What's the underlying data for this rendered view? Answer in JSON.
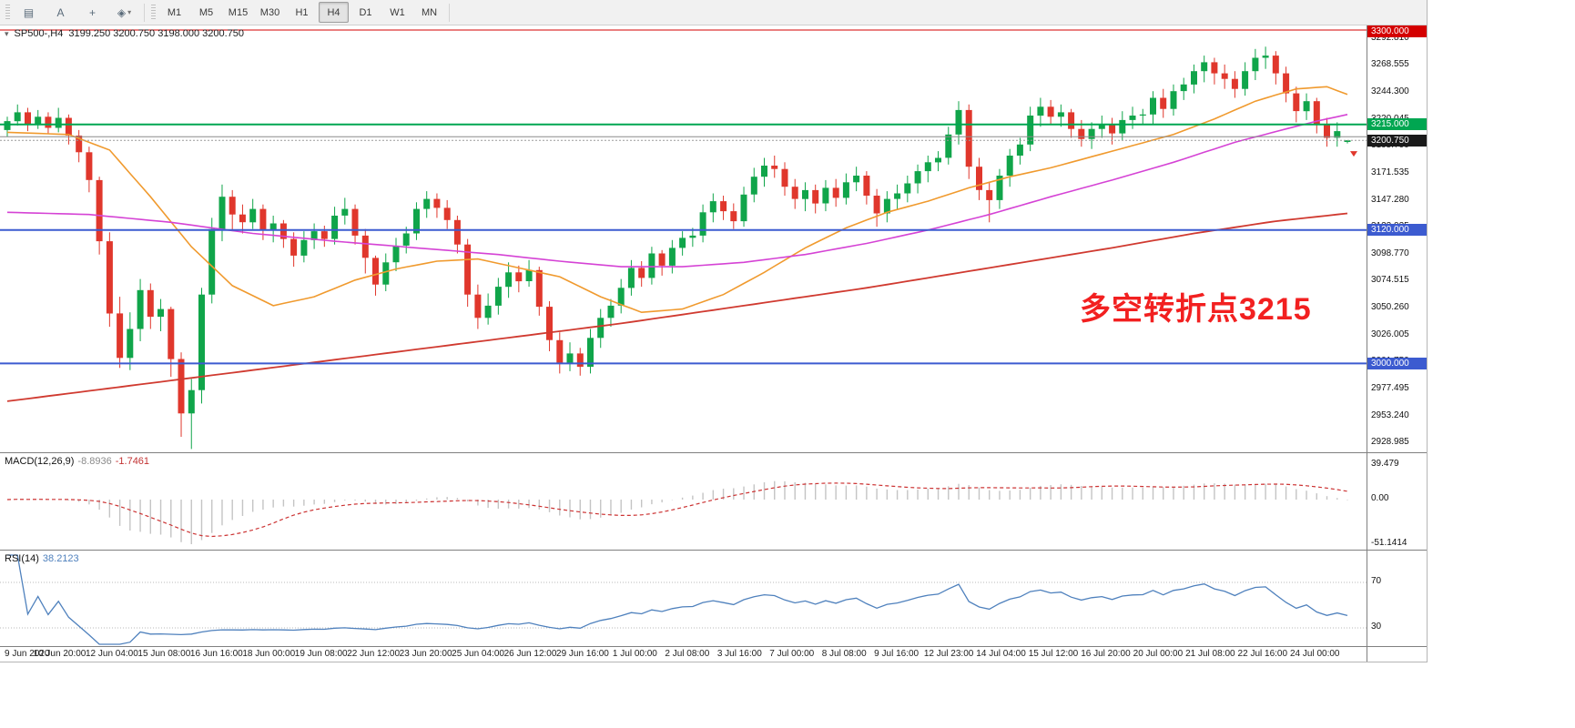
{
  "toolbar": {
    "tools": [
      {
        "name": "charts-grid",
        "glyph": "▤"
      },
      {
        "name": "text-label",
        "glyph": "A"
      },
      {
        "name": "crosshair",
        "glyph": "+"
      },
      {
        "name": "objects-list",
        "glyph": "◈",
        "caret": "▾"
      }
    ],
    "timeframes": [
      "M1",
      "M5",
      "M15",
      "M30",
      "H1",
      "H4",
      "D1",
      "W1",
      "MN"
    ],
    "active_timeframe": "H4"
  },
  "chart": {
    "title": "SP500-,H4",
    "ohlc_text": "3199.250 3200.750 3198.000 3200.750",
    "one_click_glyph": "▾",
    "annotation": {
      "text": "多空转折点3215",
      "color": "#f22020"
    },
    "price_axis": {
      "ticks": [
        "3292.810",
        "3268.555",
        "3244.300",
        "3220.045",
        "3195.790",
        "3171.535",
        "3147.280",
        "3123.025",
        "3098.770",
        "3074.515",
        "3050.260",
        "3026.005",
        "3001.750",
        "2977.495",
        "2953.240",
        "2928.985"
      ],
      "badges": [
        {
          "label": "3300.000",
          "price": 3300,
          "bg": "#d40000"
        },
        {
          "label": "3215.000",
          "price": 3215,
          "bg": "#00a651"
        },
        {
          "label": "3200.750",
          "price": 3200.75,
          "bg": "#1a1a1a"
        },
        {
          "label": "3120.000",
          "price": 3120,
          "bg": "#3c5bd0"
        },
        {
          "label": "3000.000",
          "price": 3000,
          "bg": "#3c5bd0"
        }
      ]
    },
    "macd_label": {
      "name": "MACD(12,26,9)",
      "value1": "-8.8936",
      "value2": "-1.7461"
    },
    "macd_axis": [
      "39.479",
      "0.00",
      "-51.1414"
    ],
    "rsi_label": {
      "name": "RSI(14)",
      "value": "38.2123"
    },
    "rsi_axis": [
      "70",
      "30"
    ]
  },
  "chart_data": {
    "type": "candlestick",
    "symbol": "SP500-",
    "timeframe": "H4",
    "title": "SP500-,H4",
    "ylim": [
      2925.0,
      3300.0
    ],
    "colors": {
      "up": "#10a54a",
      "down": "#e0372c",
      "ma_fast": "#f09a2e",
      "ma_mid": "#d543d5",
      "ma_slow": "#d03a30",
      "macd_hist": "#c4c4c4",
      "macd_signal": "#cc3333",
      "rsi": "#4f81bd",
      "bid": "#9a9a9a",
      "level": "#b9b9b9"
    },
    "candles": [
      [
        3210,
        3222,
        3204,
        3218
      ],
      [
        3218,
        3233,
        3214,
        3226
      ],
      [
        3226,
        3230,
        3209,
        3215
      ],
      [
        3215,
        3228,
        3211,
        3222
      ],
      [
        3222,
        3226,
        3207,
        3212
      ],
      [
        3212,
        3230,
        3208,
        3221
      ],
      [
        3221,
        3224,
        3197,
        3205
      ],
      [
        3205,
        3210,
        3181,
        3190
      ],
      [
        3190,
        3195,
        3154,
        3165
      ],
      [
        3165,
        3168,
        3098,
        3110
      ],
      [
        3110,
        3118,
        3033,
        3045
      ],
      [
        3045,
        3060,
        2996,
        3005
      ],
      [
        3005,
        3046,
        2994,
        3031
      ],
      [
        3031,
        3076,
        3020,
        3066
      ],
      [
        3066,
        3072,
        3031,
        3042
      ],
      [
        3042,
        3058,
        3029,
        3049
      ],
      [
        3049,
        3051,
        2988,
        3004
      ],
      [
        3004,
        3010,
        2934,
        2955
      ],
      [
        2955,
        2986,
        2923,
        2976
      ],
      [
        2976,
        3068,
        2964,
        3062
      ],
      [
        3062,
        3131,
        3054,
        3121
      ],
      [
        3121,
        3161,
        3110,
        3150
      ],
      [
        3150,
        3156,
        3119,
        3134
      ],
      [
        3134,
        3143,
        3117,
        3127
      ],
      [
        3127,
        3148,
        3121,
        3139
      ],
      [
        3139,
        3143,
        3111,
        3120
      ],
      [
        3120,
        3133,
        3109,
        3126
      ],
      [
        3126,
        3129,
        3104,
        3112
      ],
      [
        3112,
        3118,
        3087,
        3097
      ],
      [
        3097,
        3119,
        3091,
        3111
      ],
      [
        3111,
        3126,
        3103,
        3119
      ],
      [
        3119,
        3124,
        3105,
        3112
      ],
      [
        3112,
        3141,
        3107,
        3133
      ],
      [
        3133,
        3149,
        3125,
        3139
      ],
      [
        3139,
        3143,
        3107,
        3115
      ],
      [
        3115,
        3121,
        3081,
        3095
      ],
      [
        3095,
        3097,
        3061,
        3071
      ],
      [
        3071,
        3099,
        3065,
        3091
      ],
      [
        3091,
        3113,
        3083,
        3106
      ],
      [
        3106,
        3123,
        3099,
        3117
      ],
      [
        3117,
        3145,
        3111,
        3139
      ],
      [
        3139,
        3155,
        3131,
        3148
      ],
      [
        3148,
        3153,
        3131,
        3140
      ],
      [
        3140,
        3147,
        3121,
        3129
      ],
      [
        3129,
        3133,
        3099,
        3107
      ],
      [
        3107,
        3112,
        3051,
        3062
      ],
      [
        3062,
        3071,
        3031,
        3041
      ],
      [
        3041,
        3063,
        3035,
        3052
      ],
      [
        3052,
        3077,
        3044,
        3069
      ],
      [
        3069,
        3091,
        3059,
        3082
      ],
      [
        3082,
        3088,
        3064,
        3074
      ],
      [
        3074,
        3093,
        3069,
        3084
      ],
      [
        3084,
        3087,
        3043,
        3051
      ],
      [
        3051,
        3056,
        3011,
        3021
      ],
      [
        3021,
        3028,
        2991,
        3000
      ],
      [
        3000,
        3019,
        2993,
        3009
      ],
      [
        3009,
        3014,
        2989,
        2997
      ],
      [
        2997,
        3031,
        2991,
        3023
      ],
      [
        3023,
        3049,
        3014,
        3041
      ],
      [
        3041,
        3058,
        3033,
        3052
      ],
      [
        3052,
        3076,
        3045,
        3068
      ],
      [
        3068,
        3093,
        3061,
        3086
      ],
      [
        3086,
        3092,
        3069,
        3077
      ],
      [
        3077,
        3105,
        3071,
        3099
      ],
      [
        3099,
        3102,
        3079,
        3088
      ],
      [
        3088,
        3111,
        3081,
        3104
      ],
      [
        3104,
        3119,
        3097,
        3113
      ],
      [
        3113,
        3122,
        3105,
        3115
      ],
      [
        3115,
        3143,
        3109,
        3136
      ],
      [
        3136,
        3153,
        3127,
        3146
      ],
      [
        3146,
        3151,
        3129,
        3137
      ],
      [
        3137,
        3144,
        3121,
        3128
      ],
      [
        3128,
        3159,
        3123,
        3152
      ],
      [
        3152,
        3176,
        3145,
        3168
      ],
      [
        3168,
        3185,
        3159,
        3178
      ],
      [
        3178,
        3187,
        3167,
        3175
      ],
      [
        3175,
        3181,
        3151,
        3159
      ],
      [
        3159,
        3166,
        3139,
        3148
      ],
      [
        3148,
        3163,
        3137,
        3156
      ],
      [
        3156,
        3161,
        3135,
        3144
      ],
      [
        3144,
        3165,
        3137,
        3158
      ],
      [
        3158,
        3166,
        3141,
        3149
      ],
      [
        3149,
        3171,
        3143,
        3163
      ],
      [
        3163,
        3177,
        3155,
        3169
      ],
      [
        3169,
        3173,
        3143,
        3151
      ],
      [
        3151,
        3157,
        3123,
        3135
      ],
      [
        3135,
        3155,
        3127,
        3148
      ],
      [
        3148,
        3161,
        3139,
        3153
      ],
      [
        3153,
        3169,
        3145,
        3162
      ],
      [
        3162,
        3179,
        3153,
        3173
      ],
      [
        3173,
        3187,
        3163,
        3181
      ],
      [
        3181,
        3191,
        3173,
        3185
      ],
      [
        3185,
        3213,
        3179,
        3206
      ],
      [
        3206,
        3236,
        3197,
        3228
      ],
      [
        3228,
        3233,
        3166,
        3177
      ],
      [
        3177,
        3185,
        3147,
        3156
      ],
      [
        3156,
        3163,
        3127,
        3147
      ],
      [
        3147,
        3175,
        3139,
        3169
      ],
      [
        3169,
        3193,
        3159,
        3187
      ],
      [
        3187,
        3203,
        3179,
        3197
      ],
      [
        3197,
        3231,
        3191,
        3223
      ],
      [
        3223,
        3239,
        3213,
        3231
      ],
      [
        3231,
        3237,
        3215,
        3222
      ],
      [
        3222,
        3233,
        3213,
        3226
      ],
      [
        3226,
        3229,
        3203,
        3211
      ],
      [
        3211,
        3219,
        3195,
        3202
      ],
      [
        3202,
        3217,
        3193,
        3211
      ],
      [
        3211,
        3223,
        3203,
        3215
      ],
      [
        3215,
        3221,
        3197,
        3207
      ],
      [
        3207,
        3227,
        3201,
        3219
      ],
      [
        3219,
        3231,
        3211,
        3223
      ],
      [
        3223,
        3229,
        3215,
        3224
      ],
      [
        3224,
        3245,
        3215,
        3239
      ],
      [
        3239,
        3247,
        3221,
        3229
      ],
      [
        3229,
        3251,
        3223,
        3245
      ],
      [
        3245,
        3257,
        3237,
        3251
      ],
      [
        3251,
        3269,
        3243,
        3263
      ],
      [
        3263,
        3277,
        3253,
        3271
      ],
      [
        3271,
        3275,
        3251,
        3261
      ],
      [
        3261,
        3269,
        3247,
        3256
      ],
      [
        3256,
        3263,
        3239,
        3247
      ],
      [
        3247,
        3271,
        3241,
        3263
      ],
      [
        3263,
        3283,
        3255,
        3275
      ],
      [
        3275,
        3285,
        3265,
        3277
      ],
      [
        3277,
        3281,
        3251,
        3261
      ],
      [
        3261,
        3267,
        3235,
        3243
      ],
      [
        3243,
        3249,
        3217,
        3227
      ],
      [
        3227,
        3243,
        3219,
        3236
      ],
      [
        3236,
        3239,
        3207,
        3215
      ],
      [
        3215,
        3221,
        3195,
        3203
      ],
      [
        3203,
        3217,
        3195,
        3209
      ],
      [
        3199.25,
        3200.75,
        3198,
        3200.75
      ]
    ],
    "ma_lines": [
      {
        "name": "ma-fast-orange",
        "color": "#f09a2e",
        "width": 1.6,
        "anchors": [
          [
            0,
            3208
          ],
          [
            6,
            3206
          ],
          [
            10,
            3192
          ],
          [
            14,
            3150
          ],
          [
            18,
            3105
          ],
          [
            22,
            3070
          ],
          [
            26,
            3052
          ],
          [
            30,
            3060
          ],
          [
            34,
            3075
          ],
          [
            38,
            3085
          ],
          [
            42,
            3092
          ],
          [
            46,
            3094
          ],
          [
            50,
            3086
          ],
          [
            54,
            3078
          ],
          [
            58,
            3060
          ],
          [
            62,
            3046
          ],
          [
            66,
            3049
          ],
          [
            70,
            3062
          ],
          [
            74,
            3082
          ],
          [
            78,
            3104
          ],
          [
            82,
            3122
          ],
          [
            86,
            3136
          ],
          [
            90,
            3146
          ],
          [
            94,
            3158
          ],
          [
            98,
            3168
          ],
          [
            102,
            3176
          ],
          [
            106,
            3186
          ],
          [
            110,
            3196
          ],
          [
            114,
            3206
          ],
          [
            118,
            3220
          ],
          [
            122,
            3236
          ],
          [
            126,
            3247
          ],
          [
            129,
            3249
          ],
          [
            131,
            3242
          ]
        ]
      },
      {
        "name": "ma-mid-magenta",
        "color": "#d543d5",
        "width": 1.6,
        "anchors": [
          [
            0,
            3136
          ],
          [
            8,
            3134
          ],
          [
            16,
            3127
          ],
          [
            24,
            3117
          ],
          [
            32,
            3110
          ],
          [
            40,
            3104
          ],
          [
            48,
            3098
          ],
          [
            54,
            3092
          ],
          [
            60,
            3087
          ],
          [
            66,
            3087
          ],
          [
            72,
            3091
          ],
          [
            78,
            3098
          ],
          [
            84,
            3108
          ],
          [
            90,
            3120
          ],
          [
            96,
            3134
          ],
          [
            102,
            3150
          ],
          [
            108,
            3165
          ],
          [
            114,
            3181
          ],
          [
            120,
            3199
          ],
          [
            125,
            3211
          ],
          [
            128,
            3218
          ],
          [
            131,
            3224
          ]
        ]
      },
      {
        "name": "ma-slow-red",
        "color": "#d03a30",
        "width": 1.8,
        "anchors": [
          [
            0,
            2966
          ],
          [
            12,
            2980
          ],
          [
            24,
            2994
          ],
          [
            36,
            3008
          ],
          [
            48,
            3022
          ],
          [
            60,
            3036
          ],
          [
            72,
            3052
          ],
          [
            84,
            3068
          ],
          [
            96,
            3086
          ],
          [
            108,
            3104
          ],
          [
            116,
            3117
          ],
          [
            124,
            3128
          ],
          [
            131,
            3135
          ]
        ]
      }
    ],
    "hlines": [
      {
        "price": 3300,
        "color": "#d40000",
        "width": 1
      },
      {
        "price": 3215,
        "color": "#00a651",
        "width": 2
      },
      {
        "price": 3204,
        "color": "#8a8a8a",
        "width": 1
      },
      {
        "price": 3120,
        "color": "#3c5bd0",
        "width": 2
      },
      {
        "price": 3000,
        "color": "#3c5bd0",
        "width": 2
      }
    ],
    "bid_price": 3200.75,
    "last_marker": {
      "price": 3191,
      "color": "#e0372c"
    },
    "macd": {
      "fast": 12,
      "slow": 26,
      "signal": 9
    },
    "rsi": {
      "period": 14,
      "levels": [
        70,
        30
      ]
    },
    "time_labels": [
      "9 Jun 2020",
      "10 Jun 20:00",
      "12 Jun 04:00",
      "15 Jun 08:00",
      "16 Jun 16:00",
      "18 Jun 00:00",
      "19 Jun 08:00",
      "22 Jun 12:00",
      "23 Jun 20:00",
      "25 Jun 04:00",
      "26 Jun 12:00",
      "29 Jun 16:00",
      "1 Jul 00:00",
      "2 Jul 08:00",
      "3 Jul 16:00",
      "7 Jul 00:00",
      "8 Jul 08:00",
      "9 Jul 16:00",
      "12 Jul 23:00",
      "14 Jul 04:00",
      "15 Jul 12:00",
      "16 Jul 20:00",
      "20 Jul 00:00",
      "21 Jul 08:00",
      "22 Jul 16:00",
      "24 Jul 00:00"
    ]
  }
}
